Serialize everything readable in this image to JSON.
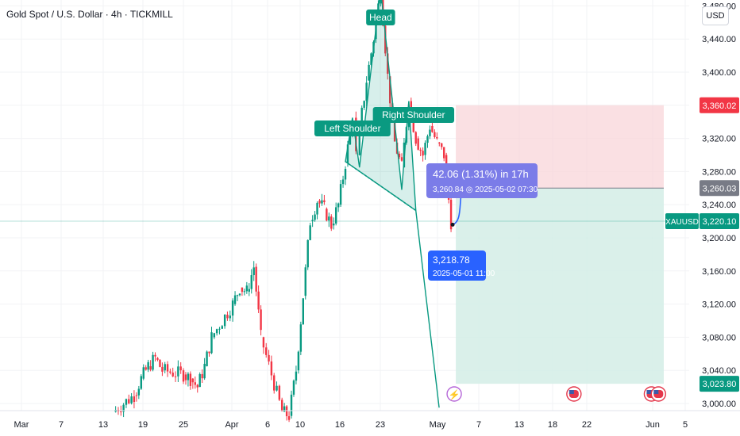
{
  "header": {
    "title": "Gold Spot / U.S. Dollar · 4h · TICKMILL",
    "currency": "USD"
  },
  "colors": {
    "up": "#089981",
    "down": "#f23645",
    "stop_zone": "#f8d6d9",
    "target_zone": "#d4ede6",
    "label_green": "#0a9a81",
    "label_blue": "#2962ff",
    "label_purple": "#7b7ce8",
    "price_red": "#f23645",
    "price_gray": "#787b86",
    "price_teal": "#089981"
  },
  "chart_data": {
    "type": "candlestick",
    "symbol": "XAUUSD",
    "timeframe": "4h",
    "ylim": [
      2995,
      3520
    ],
    "y_ticks": [
      3000,
      3040,
      3080,
      3120,
      3160,
      3200,
      3240,
      3280,
      3320,
      3360,
      3400,
      3440,
      3480
    ],
    "y_tick_labels": [
      "3,000.00",
      "3,040.00",
      "3,080.00",
      "3,120.00",
      "3,160.00",
      "3,200.00",
      "3,240.00",
      "3,280.00",
      "3,320.00",
      "3,360.00",
      "3,400.00",
      "3,440.00",
      "3,480.00"
    ],
    "x_tick_labels": [
      "Mar",
      "7",
      "13",
      "19",
      "25",
      "Apr",
      "6",
      "10",
      "16",
      "23",
      "May",
      "7",
      "13",
      "18",
      "22",
      "Jun",
      "5"
    ],
    "price_path": [
      {
        "date": "2025-03-14",
        "price": 2990
      },
      {
        "date": "2025-03-17",
        "price": 3010
      },
      {
        "date": "2025-03-18",
        "price": 3030
      },
      {
        "date": "2025-03-19",
        "price": 3045
      },
      {
        "date": "2025-03-20",
        "price": 3055
      },
      {
        "date": "2025-03-21",
        "price": 3040
      },
      {
        "date": "2025-03-24",
        "price": 3035
      },
      {
        "date": "2025-03-25",
        "price": 3030
      },
      {
        "date": "2025-03-26",
        "price": 3020
      },
      {
        "date": "2025-03-27",
        "price": 3045
      },
      {
        "date": "2025-03-28",
        "price": 3080
      },
      {
        "date": "2025-03-31",
        "price": 3120
      },
      {
        "date": "2025-04-01",
        "price": 3140
      },
      {
        "date": "2025-04-02",
        "price": 3135
      },
      {
        "date": "2025-04-03",
        "price": 3165
      },
      {
        "date": "2025-04-04",
        "price": 3080
      },
      {
        "date": "2025-04-07",
        "price": 2990
      },
      {
        "date": "2025-04-08",
        "price": 2985
      },
      {
        "date": "2025-04-09",
        "price": 3040
      },
      {
        "date": "2025-04-10",
        "price": 3130
      },
      {
        "date": "2025-04-11",
        "price": 3220
      },
      {
        "date": "2025-04-12",
        "price": 3245
      },
      {
        "date": "2025-04-13",
        "price": 3235
      },
      {
        "date": "2025-04-14",
        "price": 3215
      },
      {
        "date": "2025-04-15",
        "price": 3240
      },
      {
        "date": "2025-04-16",
        "price": 3290
      },
      {
        "date": "2025-04-17",
        "price": 3345
      },
      {
        "date": "2025-04-17T12:00",
        "price": 3300
      },
      {
        "date": "2025-04-18",
        "price": 3330
      },
      {
        "date": "2025-04-19",
        "price": 3390
      },
      {
        "date": "2025-04-20",
        "price": 3440
      },
      {
        "date": "2025-04-21",
        "price": 3500
      },
      {
        "date": "2025-04-22",
        "price": 3395
      },
      {
        "date": "2025-04-23",
        "price": 3315
      },
      {
        "date": "2025-04-24",
        "price": 3285
      },
      {
        "date": "2025-04-25",
        "price": 3365
      },
      {
        "date": "2025-04-26",
        "price": 3320
      },
      {
        "date": "2025-04-27",
        "price": 3300
      },
      {
        "date": "2025-04-28",
        "price": 3335
      },
      {
        "date": "2025-04-29",
        "price": 3315
      },
      {
        "date": "2025-04-30",
        "price": 3300
      },
      {
        "date": "2025-05-01",
        "price": 3219
      }
    ],
    "pattern": {
      "name": "Head and Shoulders",
      "left_shoulder": {
        "label": "Left Shoulder",
        "date": "2025-04-17",
        "price": 3345
      },
      "head": {
        "label": "Head",
        "date": "2025-04-21",
        "price": 3500
      },
      "right_shoulder": {
        "label": "Right Shoulder",
        "date": "2025-04-25",
        "price": 3365
      },
      "neckline": [
        {
          "date": "2025-04-16",
          "price": 3292
        },
        {
          "date": "2025-04-26",
          "price": 3233
        }
      ]
    },
    "projection_line": [
      {
        "date": "2025-04-26",
        "price": 3233
      },
      {
        "date": "2025-05-01",
        "price": 2995
      }
    ],
    "position": {
      "type": "short",
      "entry": 3260.03,
      "stop": 3360.02,
      "target": 3023.8,
      "start_date": "2025-05-01",
      "end_date": "2025-06-01"
    },
    "current_price": 3220.1,
    "measure": {
      "from_price": 3218.78,
      "from_time": "2025-05-01 11:00",
      "to_price": 3260.84,
      "to_time": "2025-05-02 07:30",
      "change": "42.06 (1.31%) in 17h"
    },
    "price_labels": {
      "stop": "3,360.02",
      "entry": "3,260.03",
      "current": "3,220.10",
      "target": "3,023.80",
      "symbol": "XAUUSD"
    },
    "measure_text": {
      "main": "42.06 (1.31%) in 17h",
      "sub": "3,260.84 ◎ 2025-05-02  07:30",
      "low_price": "3,218.78",
      "low_time": "2025-05-01 11:00"
    },
    "events": [
      {
        "type": "lightning",
        "date": "2025-05-01"
      },
      {
        "type": "us-flag",
        "date": "2025-05-18"
      },
      {
        "type": "us-flag",
        "date": "2025-05-29"
      },
      {
        "type": "us-flag",
        "date": "2025-05-30"
      }
    ]
  }
}
